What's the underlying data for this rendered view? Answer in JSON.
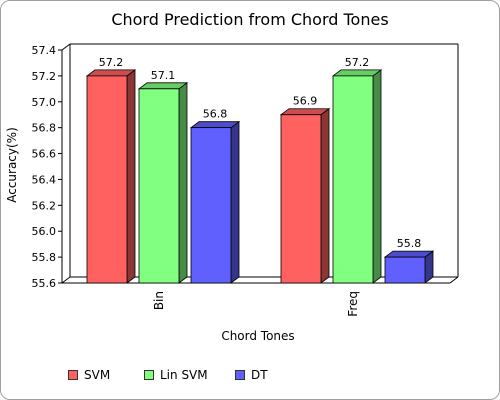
{
  "chart_data": {
    "type": "bar",
    "title": "Chord Prediction from Chord Tones",
    "xlabel": "Chord Tones",
    "ylabel": "Accuracy(%)",
    "categories": [
      "Bin",
      "Freq"
    ],
    "series": [
      {
        "name": "SVM",
        "color": "#ff6060",
        "values": [
          57.2,
          56.9
        ]
      },
      {
        "name": "Lin SVM",
        "color": "#80ff80",
        "values": [
          57.1,
          57.2
        ]
      },
      {
        "name": "DT",
        "color": "#6060ff",
        "values": [
          56.8,
          55.8
        ]
      }
    ],
    "ylim": [
      55.6,
      57.4
    ],
    "yticks": [
      "55.6",
      "55.8",
      "56.0",
      "56.2",
      "56.4",
      "56.6",
      "56.8",
      "57.0",
      "57.2",
      "57.4"
    ],
    "grid": false,
    "legend": "bottom"
  }
}
